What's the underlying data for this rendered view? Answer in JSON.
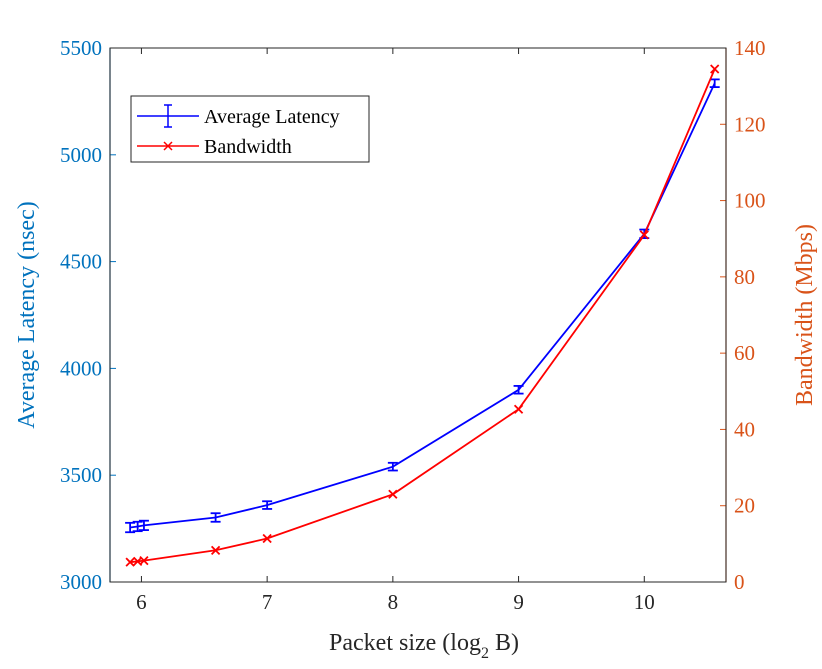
{
  "chart_data": {
    "type": "line",
    "title": "",
    "xlabel": "Packet size (log",
    "xlabel_sub": "2",
    "xlabel_tail": " B)",
    "ylabel_left": "Average Latency (nsec)",
    "ylabel_right": "Bandwidth (Mbps)",
    "xlim": [
      5.75,
      10.65
    ],
    "ylim_left": [
      3000,
      5500
    ],
    "ylim_right": [
      0,
      140
    ],
    "xticks": [
      6,
      7,
      8,
      9,
      10
    ],
    "yticks_left": [
      3000,
      3500,
      4000,
      4500,
      5000,
      5500
    ],
    "yticks_right": [
      0,
      20,
      40,
      60,
      80,
      100,
      120,
      140
    ],
    "grid": false,
    "legend_position": "top-left",
    "series": [
      {
        "name": "Average Latency",
        "axis": "left",
        "color": "#0000FF",
        "marker": "errorbar",
        "x": [
          5.91,
          5.97,
          6.02,
          6.59,
          7.0,
          8.0,
          9.0,
          10.0,
          10.56
        ],
        "y": [
          3255,
          3260,
          3265,
          3302,
          3360,
          3540,
          3900,
          4630,
          5335
        ],
        "err": [
          22,
          22,
          22,
          20,
          18,
          18,
          18,
          20,
          18
        ]
      },
      {
        "name": "Bandwidth",
        "axis": "right",
        "color": "#FF0000",
        "marker": "x",
        "x": [
          5.91,
          5.97,
          6.02,
          6.59,
          7.0,
          8.0,
          9.0,
          10.0,
          10.56
        ],
        "y": [
          5.2,
          5.4,
          5.6,
          8.3,
          11.4,
          23.0,
          45.3,
          91.0,
          134.5
        ]
      }
    ]
  }
}
